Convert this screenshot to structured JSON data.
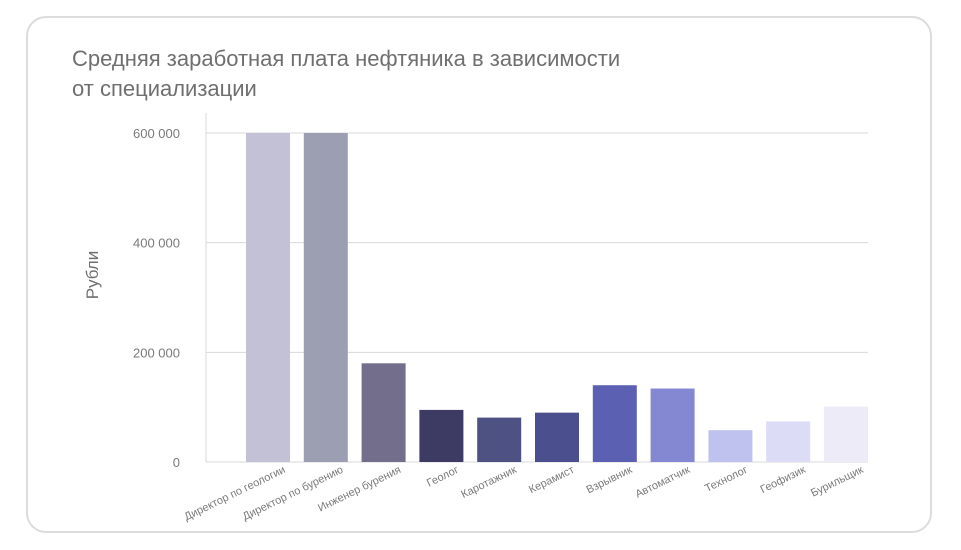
{
  "chart_data": {
    "type": "bar",
    "title_lines": [
      "Средняя заработная плата нефтяника в зависимости",
      "от специализации"
    ],
    "xlabel": "",
    "ylabel": "Рубли",
    "ylim": [
      0,
      600000
    ],
    "yticks": [
      0,
      200000,
      400000,
      600000
    ],
    "ytick_labels": [
      "0",
      "200 000",
      "400 000",
      "600 000"
    ],
    "grid": true,
    "legend": "none",
    "categories": [
      "Директор по геологии",
      "Директор по бурению",
      "Инженер бурения",
      "Геолог",
      "Каротажник",
      "Керамист",
      "Взрывник",
      "Автоматчик",
      "Технолог",
      "Геофизик",
      "Бурильщик"
    ],
    "values": [
      600000,
      600000,
      180000,
      95000,
      81000,
      90000,
      140000,
      134000,
      58000,
      74000,
      101000
    ],
    "colors": [
      "#c3c1d6",
      "#9c9fb2",
      "#736e8c",
      "#3d3a63",
      "#4d5283",
      "#4b4f8e",
      "#5b60b2",
      "#8487d2",
      "#bfc1ef",
      "#dcdcf7",
      "#edebf7"
    ]
  }
}
